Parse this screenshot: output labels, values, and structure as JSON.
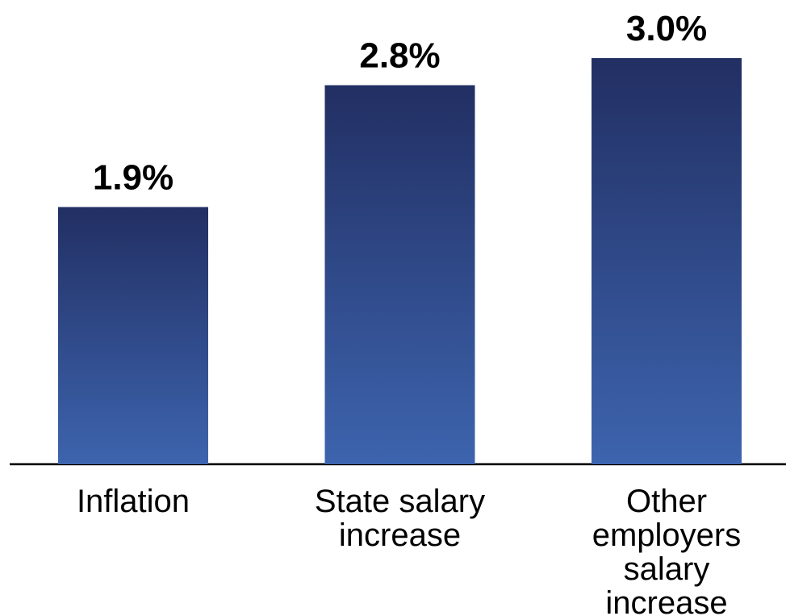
{
  "chart_data": {
    "type": "bar",
    "categories": [
      "Inflation",
      "State salary increase",
      "Other employers salary increase"
    ],
    "values": [
      1.9,
      2.8,
      3.0
    ],
    "value_labels": [
      "1.9%",
      "2.8%",
      "3.0%"
    ],
    "color": "#3a5fa8"
  }
}
